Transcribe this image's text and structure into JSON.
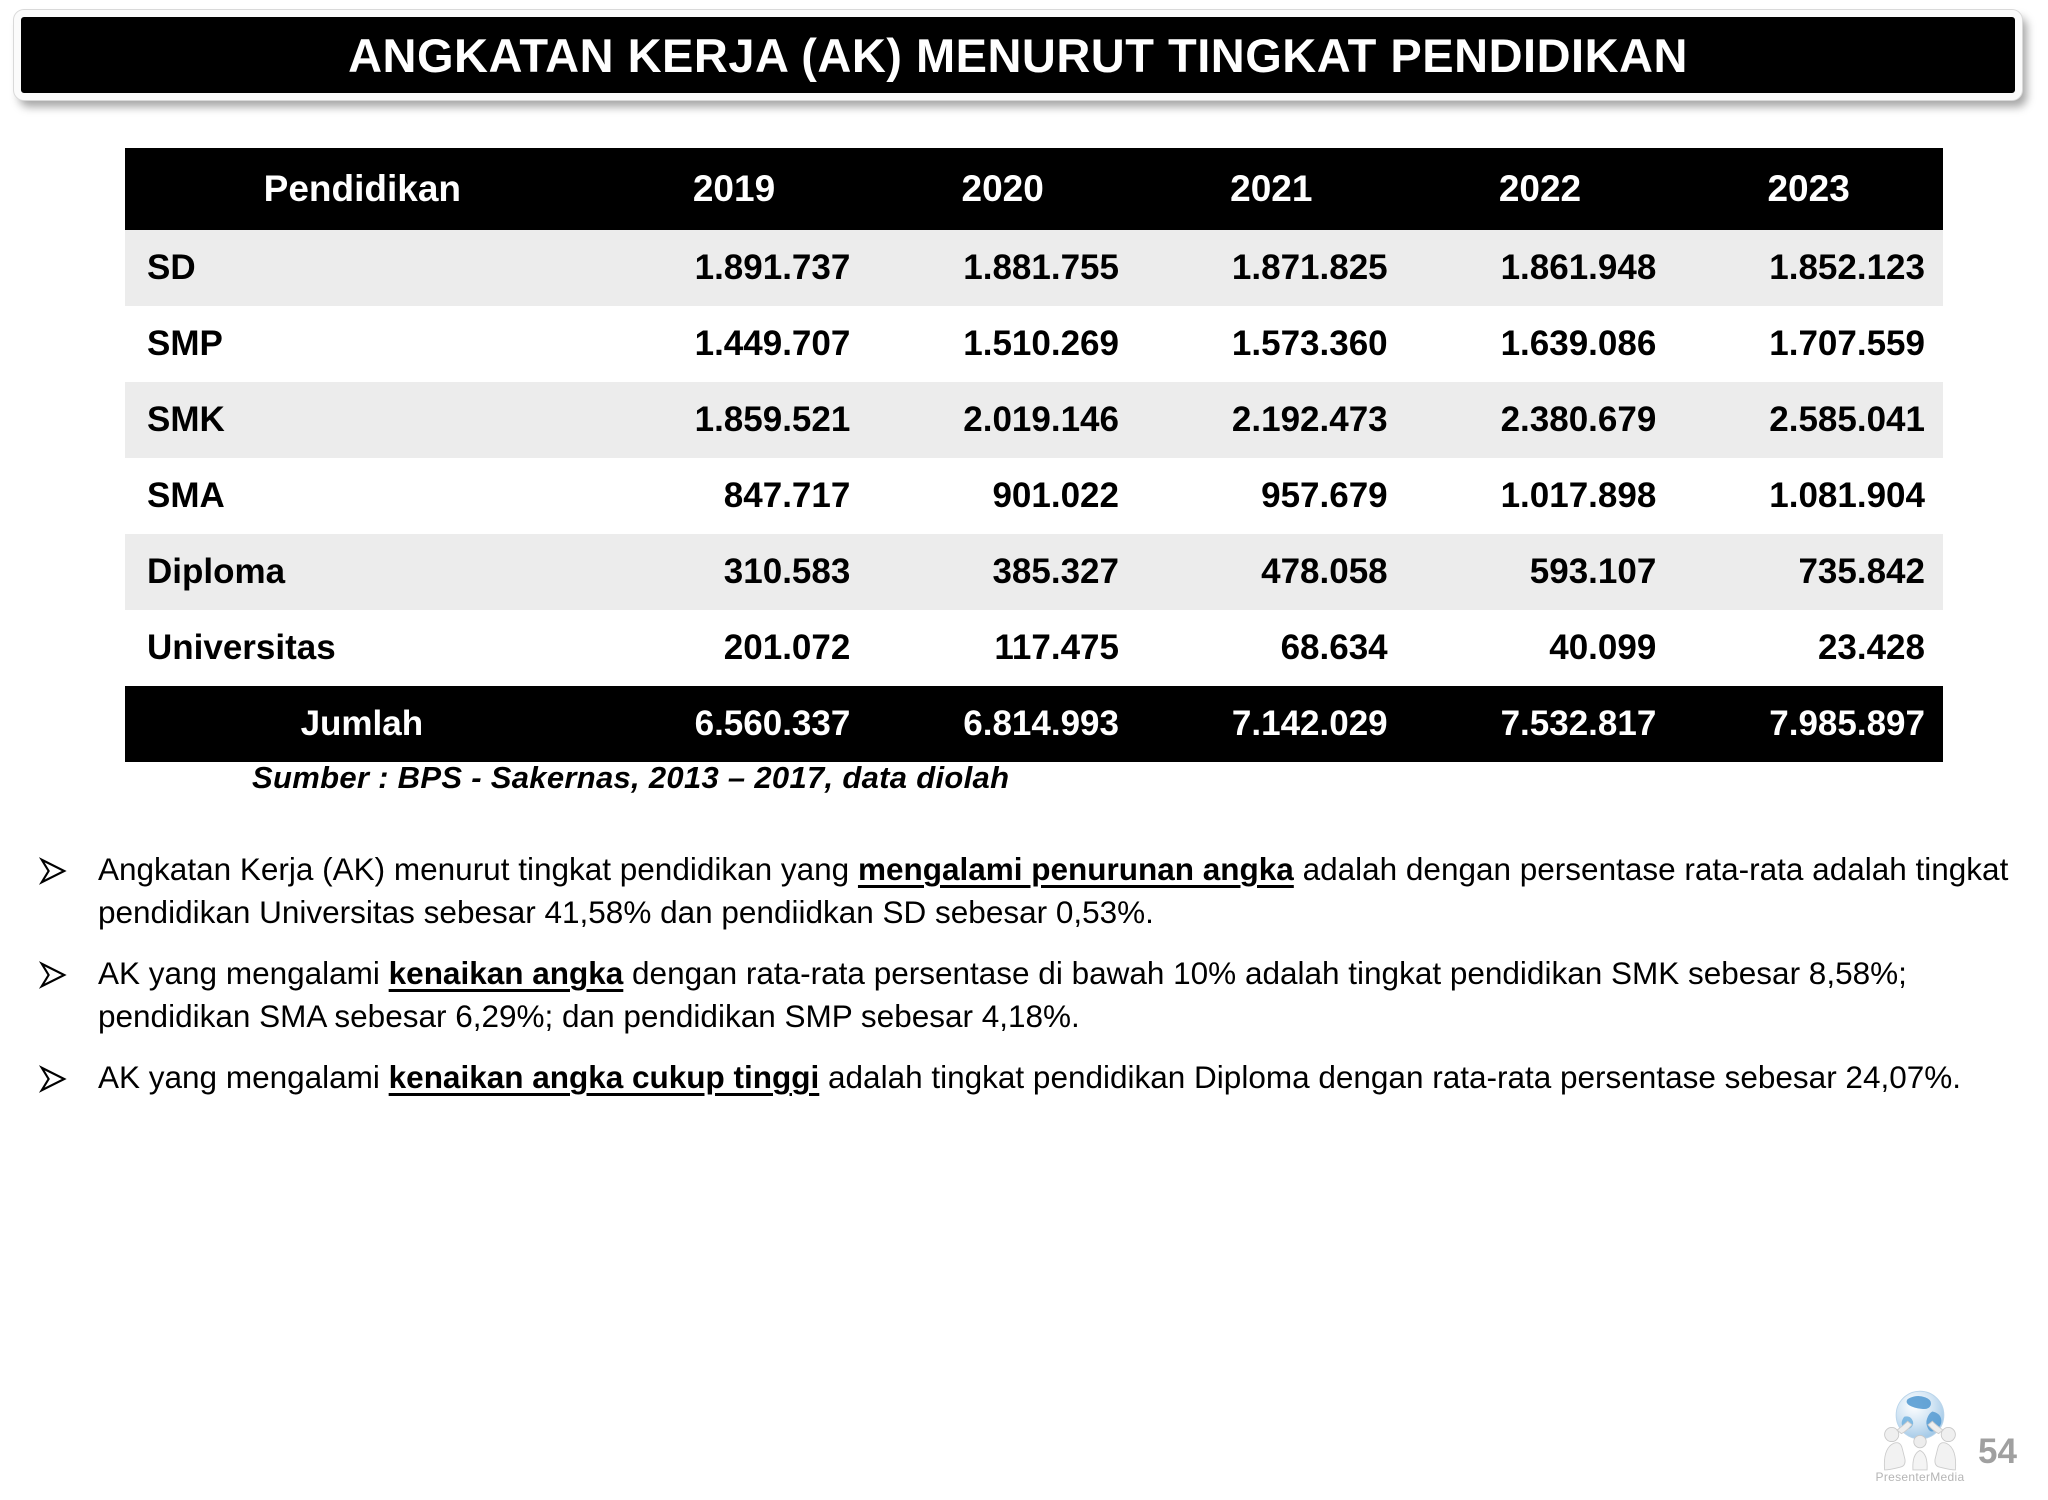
{
  "slide": {
    "title": "ANGKATAN KERJA (AK) MENURUT TINGKAT PENDIDIKAN",
    "source_note": "Sumber : BPS - Sakernas, 2013 – 2017, data diolah",
    "page_number": "54"
  },
  "table": {
    "columns": [
      "Pendidikan",
      "2019",
      "2020",
      "2021",
      "2022",
      "2023"
    ],
    "rows": [
      {
        "label": "SD",
        "values": [
          "1.891.737",
          "1.881.755",
          "1.871.825",
          "1.861.948",
          "1.852.123"
        ]
      },
      {
        "label": "SMP",
        "values": [
          "1.449.707",
          "1.510.269",
          "1.573.360",
          "1.639.086",
          "1.707.559"
        ]
      },
      {
        "label": "SMK",
        "values": [
          "1.859.521",
          "2.019.146",
          "2.192.473",
          "2.380.679",
          "2.585.041"
        ]
      },
      {
        "label": "SMA",
        "values": [
          "847.717",
          "901.022",
          "957.679",
          "1.017.898",
          "1.081.904"
        ]
      },
      {
        "label": "Diploma",
        "values": [
          "310.583",
          "385.327",
          "478.058",
          "593.107",
          "735.842"
        ]
      },
      {
        "label": "Universitas",
        "values": [
          "201.072",
          "117.475",
          "68.634",
          "40.099",
          "23.428"
        ]
      }
    ],
    "total_row": {
      "label": "Jumlah",
      "values": [
        "6.560.337",
        "6.814.993",
        "7.142.029",
        "7.532.817",
        "7.985.897"
      ]
    }
  },
  "bullets": {
    "marker_unicode": "➢",
    "items": [
      {
        "segments": [
          {
            "text": "Angkatan Kerja (AK) menurut tingkat pendidikan yang ",
            "em": false
          },
          {
            "text": "mengalami penurunan angka",
            "em": true
          },
          {
            "text": " adalah dengan persentase rata-rata adalah tingkat pendidikan Universitas sebesar 41,58% dan pendiidkan SD sebesar 0,53%.",
            "em": false
          }
        ]
      },
      {
        "segments": [
          {
            "text": "AK yang mengalami ",
            "em": false
          },
          {
            "text": "kenaikan angka",
            "em": true
          },
          {
            "text": " dengan rata-rata persentase di bawah 10% adalah tingkat pendidikan SMK sebesar 8,58%; pendidikan SMA sebesar 6,29%; dan pendidikan SMP sebesar 4,18%.",
            "em": false
          }
        ]
      },
      {
        "segments": [
          {
            "text": "AK yang mengalami ",
            "em": false
          },
          {
            "text": "kenaikan angka cukup tinggi",
            "em": true
          },
          {
            "text": " adalah tingkat pendidikan Diploma dengan rata-rata persentase sebesar 24,07%.",
            "em": false
          }
        ]
      }
    ]
  },
  "logo": {
    "icon": "globe-carried-by-figures-icon",
    "caption": "PresenterMedia"
  },
  "colors": {
    "title_bar_bg": "#000000",
    "table_header_bg": "#000000",
    "table_total_bg": "#000000",
    "row_stripe": "#ececec",
    "page_number": "#a0a0a0",
    "logo_globe_blue": "#4d96d0",
    "logo_globe_base": "#cfe3f3"
  }
}
